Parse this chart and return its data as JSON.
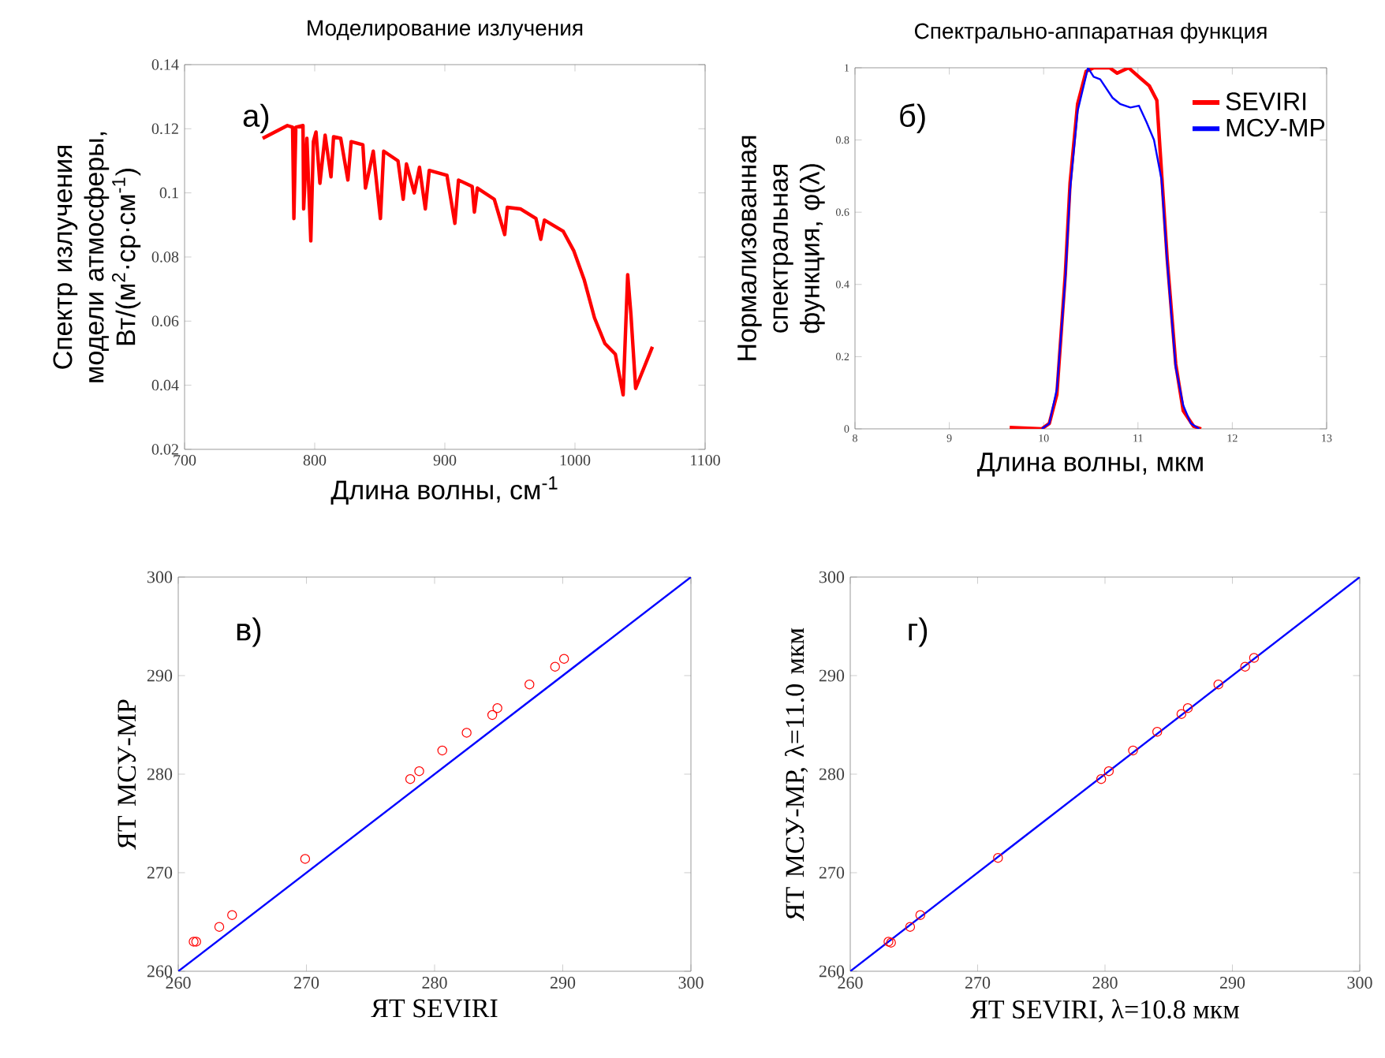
{
  "chart_data": [
    {
      "type": "line",
      "title": "Моделирование излучения",
      "xlabel": "Длина волны, см$^{-1}$",
      "ylabel": "Спектр излучения модели атмосферы, Вт/(м$^{2}$·ср·см$^{-1}$)",
      "annotations": [
        "а)"
      ],
      "xlim": [
        700,
        1100
      ],
      "ylim": [
        0.02,
        0.14
      ],
      "xticks": [
        700,
        800,
        900,
        1000,
        1100
      ],
      "yticks": [
        0.02,
        0.04,
        0.06,
        0.08,
        0.1,
        0.12,
        0.14
      ],
      "series": [
        {
          "color": "#ff0000",
          "x": [
            760,
            779,
            783,
            784,
            785.5,
            791,
            791.5,
            794,
            797,
            799,
            801,
            804,
            808,
            812.5,
            814.5,
            820,
            825.5,
            828,
            837,
            839,
            845,
            850.5,
            853,
            864,
            868,
            870.5,
            876.5,
            880.5,
            885,
            888,
            901.6,
            907.7,
            910.5,
            921,
            922.7,
            925,
            938,
            946,
            948,
            958,
            970,
            973.7,
            976.5,
            991,
            999,
            1007,
            1015,
            1023,
            1031,
            1037,
            1040.5,
            1043,
            1046.6,
            1059.5
          ],
          "values": [
            0.117,
            0.121,
            0.1205,
            0.092,
            0.1205,
            0.121,
            0.095,
            0.117,
            0.085,
            0.116,
            0.119,
            0.103,
            0.118,
            0.105,
            0.1175,
            0.117,
            0.104,
            0.116,
            0.115,
            0.1015,
            0.113,
            0.092,
            0.113,
            0.11,
            0.098,
            0.109,
            0.1,
            0.108,
            0.095,
            0.107,
            0.1055,
            0.0905,
            0.104,
            0.102,
            0.094,
            0.1015,
            0.098,
            0.087,
            0.0955,
            0.095,
            0.092,
            0.0855,
            0.0915,
            0.088,
            0.082,
            0.073,
            0.061,
            0.053,
            0.0497,
            0.037,
            0.0745,
            0.062,
            0.039,
            0.052
          ]
        }
      ]
    },
    {
      "type": "line",
      "title": "Спектрально-аппаратная функция",
      "xlabel": "Длина волны, мкм",
      "ylabel": "Нормализованная спектральная функция, φ(λ)",
      "annotations": [
        "б)"
      ],
      "legend": "top right",
      "xlim": [
        8,
        13
      ],
      "ylim": [
        0,
        1
      ],
      "xticks": [
        8,
        9,
        10,
        11,
        12,
        13
      ],
      "yticks": [
        0,
        0.2,
        0.4,
        0.6,
        0.8,
        1
      ],
      "series": [
        {
          "name": "SEVIRI",
          "color": "#ff0000",
          "x": [
            9.64,
            9.98,
            10.06,
            10.14,
            10.23,
            10.28,
            10.36,
            10.45,
            10.53,
            10.7,
            10.78,
            10.9,
            11.03,
            11.12,
            11.2,
            11.25,
            11.31,
            11.4,
            11.48,
            11.59,
            11.67
          ],
          "values": [
            0.004,
            0,
            0.015,
            0.095,
            0.43,
            0.68,
            0.9,
            0.99,
            1.0,
            1.0,
            0.985,
            1.0,
            0.97,
            0.95,
            0.91,
            0.71,
            0.47,
            0.18,
            0.05,
            0.007,
            0
          ]
        },
        {
          "name": "МСУ-МР",
          "color": "#0000ff",
          "x": [
            9.98,
            10.06,
            10.14,
            10.23,
            10.28,
            10.36,
            10.47,
            10.53,
            10.6,
            10.73,
            10.81,
            10.92,
            11.01,
            11.09,
            11.17,
            11.25,
            11.31,
            11.4,
            11.48,
            11.56,
            11.65
          ],
          "values": [
            0,
            0.015,
            0.11,
            0.415,
            0.66,
            0.88,
            1.0,
            0.975,
            0.968,
            0.917,
            0.9,
            0.89,
            0.895,
            0.85,
            0.8,
            0.69,
            0.46,
            0.17,
            0.065,
            0.015,
            0
          ]
        }
      ]
    },
    {
      "type": "scatter",
      "xlabel": "ЯТ SEVIRI",
      "ylabel": "ЯТ МСУ-МР",
      "annotations": [
        "в)"
      ],
      "xlim": [
        260,
        300
      ],
      "ylim": [
        260,
        300
      ],
      "xticks": [
        260,
        270,
        280,
        290,
        300
      ],
      "yticks": [
        260,
        270,
        280,
        290,
        300
      ],
      "series": [
        {
          "marker": "circle",
          "color": "#ff0000",
          "x": [
            261.2,
            261.4,
            263.2,
            264.2,
            269.9,
            278.1,
            278.8,
            280.6,
            282.5,
            284.5,
            284.9,
            287.4,
            289.4,
            290.1
          ],
          "values": [
            263.0,
            263.0,
            264.5,
            265.7,
            271.4,
            279.5,
            280.3,
            282.4,
            284.2,
            286.0,
            286.7,
            289.1,
            290.9,
            291.7
          ]
        },
        {
          "type": "line",
          "color": "#0000ff",
          "x": [
            260,
            300
          ],
          "values": [
            260,
            300
          ]
        }
      ]
    },
    {
      "type": "scatter",
      "xlabel": "ЯТ SEVIRI,   λ=10.8 мкм",
      "ylabel": "ЯТ МСУ-МР, λ=11.0 мкм",
      "annotations": [
        "г)"
      ],
      "xlim": [
        260,
        300
      ],
      "ylim": [
        260,
        300
      ],
      "xticks": [
        260,
        270,
        280,
        290,
        300
      ],
      "yticks": [
        260,
        270,
        280,
        290,
        300
      ],
      "series": [
        {
          "marker": "circle",
          "color": "#ff0000",
          "x": [
            263.0,
            263.2,
            264.7,
            265.5,
            271.6,
            279.7,
            280.3,
            282.2,
            284.1,
            286.0,
            286.5,
            288.9,
            291.0,
            291.7
          ],
          "values": [
            263.0,
            262.9,
            264.5,
            265.7,
            271.5,
            279.5,
            280.3,
            282.4,
            284.3,
            286.1,
            286.7,
            289.1,
            290.9,
            291.8
          ]
        },
        {
          "type": "line",
          "color": "#0000ff",
          "x": [
            260,
            300
          ],
          "values": [
            260,
            300
          ]
        }
      ]
    }
  ]
}
